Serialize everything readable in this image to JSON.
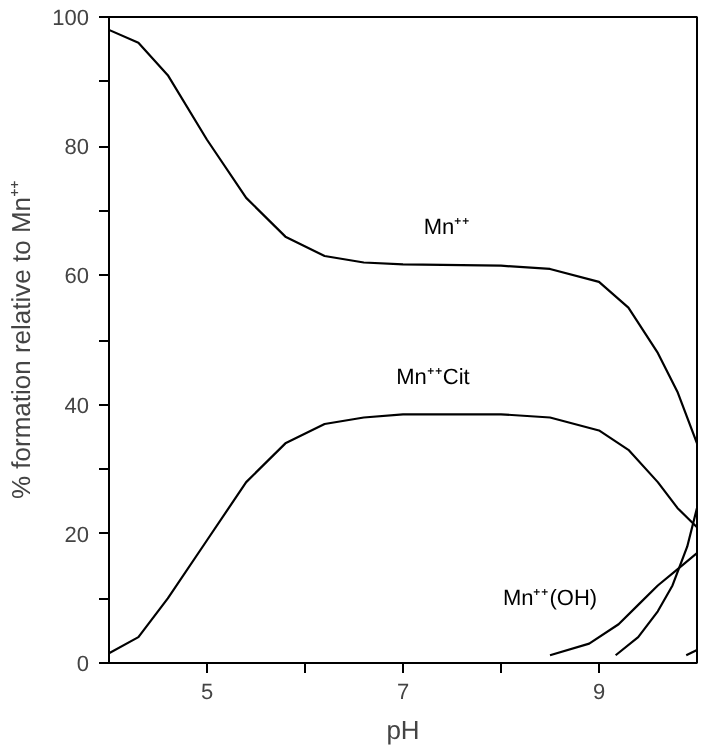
{
  "chart_data": {
    "type": "line",
    "xlabel": "pH",
    "ylabel": "% formation relative to Mn⁺⁺",
    "xlim": [
      4,
      10
    ],
    "ylim": [
      0,
      100
    ],
    "xticks": [
      5,
      {
        "value": 6,
        "label": null
      },
      7,
      {
        "value": 8,
        "label": null
      },
      9
    ],
    "yticks": [
      0,
      {
        "value": 10,
        "label": null
      },
      20,
      {
        "value": 30,
        "label": null
      },
      40,
      {
        "value": 50,
        "label": null
      },
      60,
      {
        "value": 70,
        "label": null
      },
      80,
      {
        "value": 90,
        "label": null
      },
      100
    ],
    "grid": false,
    "marker": "none",
    "line_style": "solid",
    "series": [
      {
        "name": "Mn⁺⁺",
        "color": "#000000",
        "x": [
          4.0,
          4.3,
          4.6,
          5.0,
          5.4,
          5.8,
          6.2,
          6.6,
          7.0,
          8.0,
          8.5,
          9.0,
          9.3,
          9.6,
          9.8,
          10.0
        ],
        "values": [
          98,
          96,
          91,
          81,
          72,
          66,
          63,
          62,
          61.7,
          61.5,
          61,
          59,
          55,
          48,
          42,
          34
        ]
      },
      {
        "name": "Mn⁺⁺Cit",
        "color": "#000000",
        "x": [
          4.0,
          4.3,
          4.6,
          5.0,
          5.4,
          5.8,
          6.2,
          6.6,
          7.0,
          8.0,
          8.5,
          9.0,
          9.3,
          9.6,
          9.8,
          10.0
        ],
        "values": [
          1.5,
          4,
          10,
          19,
          28,
          34,
          37,
          38,
          38.5,
          38.5,
          38,
          36,
          33,
          28,
          24,
          21
        ]
      },
      {
        "name": "Mn⁺⁺(OH)",
        "color": "#000000",
        "x": [
          8.5,
          8.9,
          9.2,
          9.4,
          9.6,
          9.8,
          10.0
        ],
        "values": [
          1.2,
          3,
          6,
          9,
          12,
          14.5,
          17
        ]
      },
      {
        "color": "#000000",
        "x": [
          9.17,
          9.4,
          9.6,
          9.75,
          9.9,
          10.0
        ],
        "values": [
          1.2,
          4,
          8,
          12,
          18,
          24
        ]
      },
      {
        "color": "#000000",
        "x": [
          9.89,
          10.0
        ],
        "values": [
          1.2,
          2
        ]
      }
    ]
  }
}
